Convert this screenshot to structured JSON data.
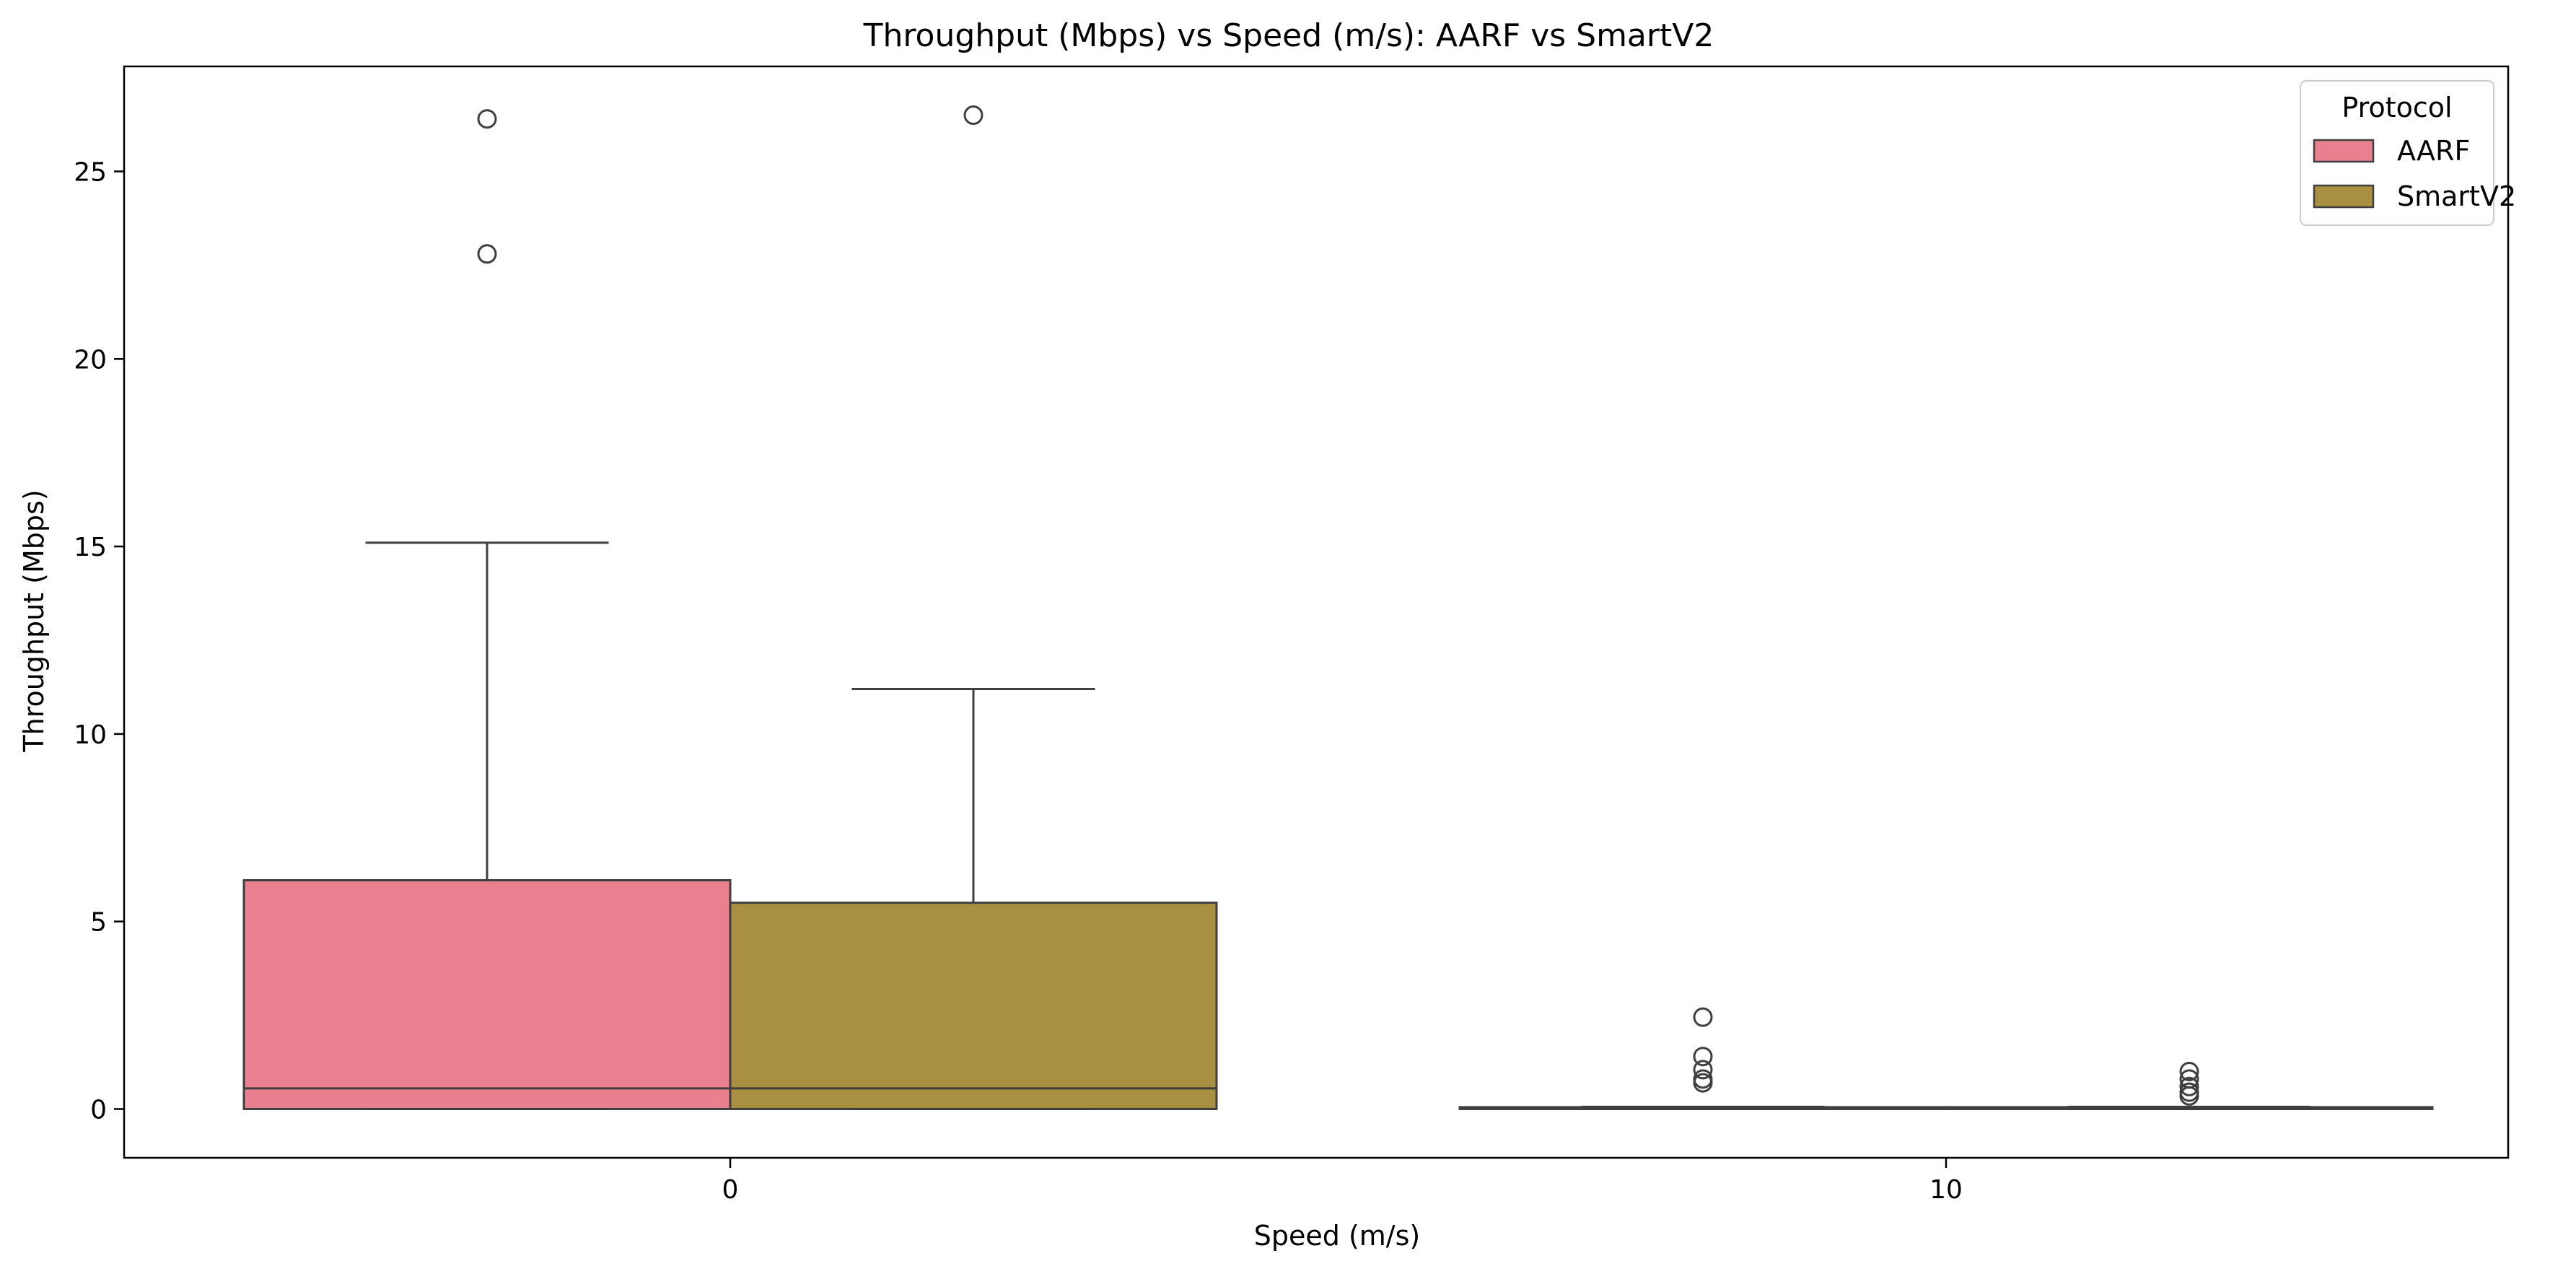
{
  "chart_data": {
    "type": "box",
    "title": "Throughput (Mbps) vs Speed (m/s): AARF vs SmartV2",
    "xlabel": "Speed (m/s)",
    "ylabel": "Throughput (Mbps)",
    "categories": [
      "0",
      "10"
    ],
    "ylim": [
      -1.3,
      27.8
    ],
    "yticks": [
      0,
      5,
      10,
      15,
      20,
      25
    ],
    "grid": false,
    "legend": {
      "title": "Protocol",
      "placement": "top-right"
    },
    "series": [
      {
        "name": "AARF",
        "color": "#e8808f",
        "boxes": [
          {
            "category": "0",
            "whisker_low": 0.0,
            "q1": 0.0,
            "median": 0.55,
            "q3": 6.1,
            "whisker_high": 15.1,
            "outliers": [
              26.4,
              22.8
            ]
          },
          {
            "category": "10",
            "whisker_low": 0.0,
            "q1": 0.0,
            "median": 0.03,
            "q3": 0.05,
            "whisker_high": 0.06,
            "outliers": [
              2.45,
              1.4,
              1.05,
              0.8,
              0.7
            ]
          }
        ]
      },
      {
        "name": "SmartV2",
        "color": "#a98f42",
        "boxes": [
          {
            "category": "0",
            "whisker_low": 0.0,
            "q1": 0.0,
            "median": 0.55,
            "q3": 5.5,
            "whisker_high": 11.2,
            "outliers": [
              26.5
            ]
          },
          {
            "category": "10",
            "whisker_low": 0.0,
            "q1": 0.0,
            "median": 0.03,
            "q3": 0.05,
            "whisker_high": 0.06,
            "outliers": [
              1.0,
              0.8,
              0.6,
              0.45,
              0.35
            ]
          }
        ]
      }
    ]
  }
}
